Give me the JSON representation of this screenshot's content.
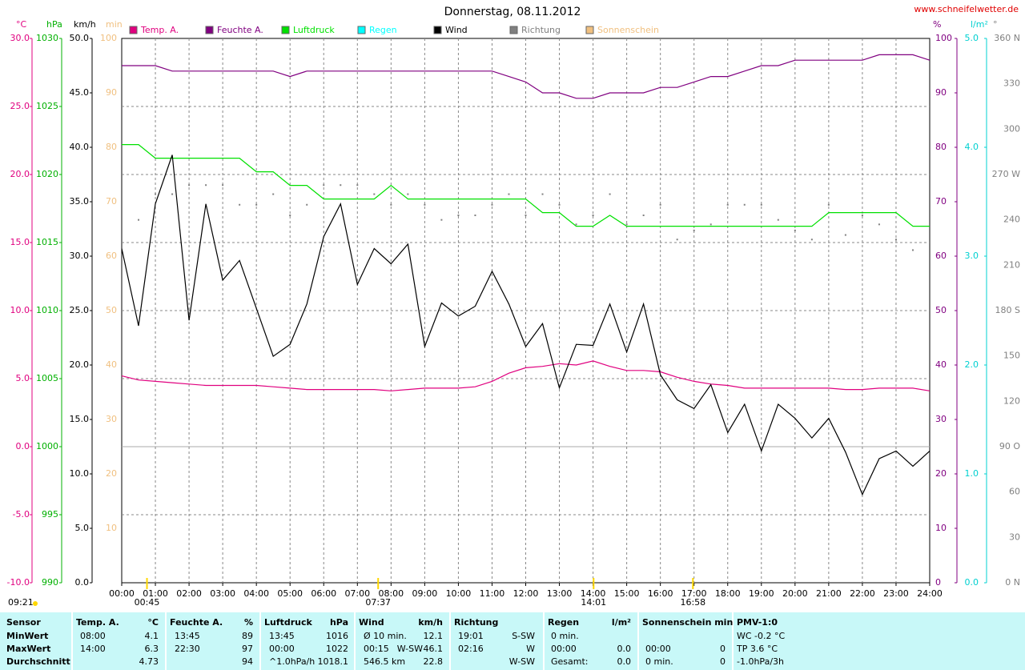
{
  "chart_data": {
    "type": "line",
    "title": "Donnerstag, 08.11.2012",
    "site": "www.schneifelwetter.de",
    "day_length": "09:21",
    "xlim": [
      0,
      24
    ],
    "xticks": [
      {
        "value": 0,
        "label": "00:00"
      },
      {
        "value": 1,
        "label": "01:00"
      },
      {
        "value": 2,
        "label": "02:00"
      },
      {
        "value": 3,
        "label": "03:00"
      },
      {
        "value": 4,
        "label": "04:00"
      },
      {
        "value": 5,
        "label": "05:00"
      },
      {
        "value": 6,
        "label": "06:00"
      },
      {
        "value": 7,
        "label": "07:00"
      },
      {
        "value": 8,
        "label": "08:00"
      },
      {
        "value": 9,
        "label": "09:00"
      },
      {
        "value": 10,
        "label": "10:00"
      },
      {
        "value": 11,
        "label": "11:00"
      },
      {
        "value": 12,
        "label": "12:00"
      },
      {
        "value": 13,
        "label": "13:00"
      },
      {
        "value": 14,
        "label": "14:00"
      },
      {
        "value": 15,
        "label": "15:00"
      },
      {
        "value": 16,
        "label": "16:00"
      },
      {
        "value": 17,
        "label": "17:00"
      },
      {
        "value": 18,
        "label": "18:00"
      },
      {
        "value": 19,
        "label": "19:00"
      },
      {
        "value": 20,
        "label": "20:00"
      },
      {
        "value": 21,
        "label": "21:00"
      },
      {
        "value": 22,
        "label": "22:00"
      },
      {
        "value": 23,
        "label": "23:00"
      },
      {
        "value": 24,
        "label": "24:00"
      }
    ],
    "grid": true,
    "y_axes": [
      {
        "unit": "°C",
        "color": "#e0007f",
        "ylim": [
          -10,
          30
        ],
        "yticks": [
          {
            "value": -10,
            "label": "-10.0"
          },
          {
            "value": -5,
            "label": "-5.0"
          },
          {
            "value": 0,
            "label": "0.0"
          },
          {
            "value": 5,
            "label": "5.0"
          },
          {
            "value": 10,
            "label": "10.0"
          },
          {
            "value": 15,
            "label": "15.0"
          },
          {
            "value": 20,
            "label": "20.0"
          },
          {
            "value": 25,
            "label": "25.0"
          },
          {
            "value": 30,
            "label": "30.0"
          }
        ]
      },
      {
        "unit": "hPa",
        "color": "#00b000",
        "ylim": [
          990,
          1030
        ],
        "yticks": [
          990,
          995,
          1000,
          1005,
          1010,
          1015,
          1020,
          1025,
          1030
        ]
      },
      {
        "unit": "km/h",
        "color": "#000000",
        "ylim": [
          0,
          50
        ],
        "yticks": [
          {
            "value": 0,
            "label": "0.0"
          },
          {
            "value": 5,
            "label": "5.0"
          },
          {
            "value": 10,
            "label": "10.0"
          },
          {
            "value": 15,
            "label": "15.0"
          },
          {
            "value": 20,
            "label": "20.0"
          },
          {
            "value": 25,
            "label": "25.0"
          },
          {
            "value": 30,
            "label": "30.0"
          },
          {
            "value": 35,
            "label": "35.0"
          },
          {
            "value": 40,
            "label": "40.0"
          },
          {
            "value": 45,
            "label": "45.0"
          },
          {
            "value": 50,
            "label": "50.0"
          }
        ]
      },
      {
        "unit": "min",
        "color": "#f0c080",
        "ylim": [
          0,
          100
        ],
        "yticks": [
          10,
          20,
          30,
          40,
          50,
          60,
          70,
          80,
          90,
          100
        ]
      },
      {
        "unit": "%",
        "color": "#800080",
        "ylim": [
          0,
          100
        ],
        "yticks": [
          0,
          10,
          20,
          30,
          40,
          50,
          60,
          70,
          80,
          90,
          100
        ]
      },
      {
        "unit": "l/m²",
        "color": "#00d0d0",
        "ylim": [
          0,
          5
        ],
        "yticks": [
          {
            "value": 0,
            "label": "0.0"
          },
          {
            "value": 1,
            "label": "1.0"
          },
          {
            "value": 2,
            "label": "2.0"
          },
          {
            "value": 3,
            "label": "3.0"
          },
          {
            "value": 4,
            "label": "4.0"
          },
          {
            "value": 5,
            "label": "5.0"
          }
        ]
      },
      {
        "unit": "°",
        "color": "#808080",
        "ylim": [
          0,
          360
        ],
        "yticks": [
          {
            "value": 0,
            "label": "0 N"
          },
          30,
          60,
          {
            "value": 90,
            "label": "90 O"
          },
          120,
          150,
          {
            "value": 180,
            "label": "180 S"
          },
          210,
          240,
          {
            "value": 270,
            "label": "270 W"
          },
          300,
          330,
          {
            "value": 360,
            "label": "360 N"
          }
        ]
      }
    ],
    "x": [
      0,
      0.5,
      1,
      1.5,
      2,
      2.5,
      3,
      3.5,
      4,
      4.5,
      5,
      5.5,
      6,
      6.5,
      7,
      7.5,
      8,
      8.5,
      9,
      9.5,
      10,
      10.5,
      11,
      11.5,
      12,
      12.5,
      13,
      13.5,
      14,
      14.5,
      15,
      15.5,
      16,
      16.5,
      17,
      17.5,
      18,
      18.5,
      19,
      19.5,
      20,
      20.5,
      21,
      21.5,
      22,
      22.5,
      23,
      23.5,
      24
    ],
    "series": [
      {
        "name": "Temp. A.",
        "color": "#e0007f",
        "axis": 0,
        "style": "line",
        "values": [
          5.2,
          4.9,
          4.8,
          4.7,
          4.6,
          4.5,
          4.5,
          4.5,
          4.5,
          4.4,
          4.3,
          4.2,
          4.2,
          4.2,
          4.2,
          4.2,
          4.1,
          4.2,
          4.3,
          4.3,
          4.3,
          4.4,
          4.8,
          5.4,
          5.8,
          5.9,
          6.1,
          6.0,
          6.3,
          5.9,
          5.6,
          5.6,
          5.5,
          5.1,
          4.8,
          4.6,
          4.5,
          4.3,
          4.3,
          4.3,
          4.3,
          4.3,
          4.3,
          4.2,
          4.2,
          4.3,
          4.3,
          4.3,
          4.1
        ]
      },
      {
        "name": "Feuchte A.",
        "color": "#800080",
        "axis": 4,
        "style": "line",
        "values": [
          95,
          95,
          95,
          94,
          94,
          94,
          94,
          94,
          94,
          94,
          93,
          94,
          94,
          94,
          94,
          94,
          94,
          94,
          94,
          94,
          94,
          94,
          94,
          93,
          92,
          90,
          90,
          89,
          89,
          90,
          90,
          90,
          91,
          91,
          92,
          93,
          93,
          94,
          95,
          95,
          96,
          96,
          96,
          96,
          96,
          97,
          97,
          97,
          96
        ]
      },
      {
        "name": "Luftdruck",
        "color": "#00e000",
        "axis": 1,
        "style": "line",
        "values": [
          1022.2,
          1022.2,
          1021.2,
          1021.2,
          1021.2,
          1021.2,
          1021.2,
          1021.2,
          1020.2,
          1020.2,
          1019.2,
          1019.2,
          1018.2,
          1018.2,
          1018.2,
          1018.2,
          1019.2,
          1018.2,
          1018.2,
          1018.2,
          1018.2,
          1018.2,
          1018.2,
          1018.2,
          1018.2,
          1017.2,
          1017.2,
          1016.2,
          1016.2,
          1017.0,
          1016.2,
          1016.2,
          1016.2,
          1016.2,
          1016.2,
          1016.2,
          1016.2,
          1016.2,
          1016.2,
          1016.2,
          1016.2,
          1016.2,
          1017.2,
          1017.2,
          1017.2,
          1017.2,
          1017.2,
          1016.2,
          1016.2
        ]
      },
      {
        "name": "Wind",
        "color": "#000000",
        "axis": 2,
        "style": "line",
        "values": [
          30.7,
          23.6,
          34.8,
          39.3,
          24.1,
          34.8,
          27.8,
          29.6,
          25.2,
          20.8,
          21.9,
          25.6,
          31.8,
          34.8,
          27.4,
          30.7,
          29.3,
          31.1,
          21.7,
          25.7,
          24.5,
          25.4,
          28.6,
          25.6,
          21.7,
          23.8,
          17.9,
          21.9,
          21.8,
          25.6,
          21.2,
          25.6,
          19.1,
          16.8,
          16.0,
          18.2,
          13.8,
          16.4,
          12.1,
          16.4,
          15.1,
          13.3,
          15.1,
          12.0,
          8.1,
          11.4,
          12.1,
          10.7,
          12.1
        ]
      },
      {
        "name": "Richtung",
        "color": "#808080",
        "axis": 6,
        "style": "dots",
        "values": [
          250,
          240,
          257,
          257,
          263,
          263,
          263,
          250,
          250,
          257,
          243,
          250,
          263,
          263,
          263,
          257,
          250,
          257,
          250,
          240,
          243,
          243,
          250,
          257,
          243,
          257,
          250,
          237,
          243,
          257,
          237,
          243,
          250,
          227,
          233,
          237,
          250,
          250,
          250,
          240,
          233,
          227,
          250,
          230,
          243,
          237,
          227,
          220,
          210
        ]
      }
    ],
    "extra_legend": [
      {
        "name": "Regen",
        "color": "#00ffff"
      },
      {
        "name": "Sonnenschein",
        "color": "#f0c080"
      }
    ],
    "sun_events": [
      {
        "value": 0.75,
        "label": "00:45"
      },
      {
        "value": 7.6167,
        "label": "07:37"
      },
      {
        "value": 14.0167,
        "label": "14:01"
      },
      {
        "value": 16.9667,
        "label": "16:58"
      }
    ]
  },
  "table": {
    "header": {
      "label": "Sensor",
      "temp": "Temp. A.",
      "temp_u": "°C",
      "hum": "Feuchte A.",
      "hum_u": "%",
      "press": "Luftdruck",
      "press_u": "hPa",
      "wind": "Wind",
      "wind_u": "km/h",
      "dir": "Richtung",
      "rain": "Regen",
      "rain_u": "l/m²",
      "sun": "Sonnenschein min",
      "pmv": "PMV-1:0"
    },
    "rows": [
      {
        "label": "MinWert",
        "temp": "08:00",
        "temp_u": "4.1",
        "hum": "13:45",
        "hum_u": "89",
        "press": "13:45",
        "press_u": "1016",
        "wind": "Ø 10 min.",
        "wind_u": "12.1",
        "dir": "19:01",
        "dir_v": "S-SW",
        "rain": "0 min.",
        "pmv": "WC -0.2 °C"
      },
      {
        "label": "MaxWert",
        "temp": "14:00",
        "temp_u": "6.3",
        "hum": "22:30",
        "hum_u": "97",
        "press": "00:00",
        "press_u": "1022",
        "wind": "00:15",
        "wind_d": "W-SW",
        "wind_u": "46.1",
        "dir": "02:16",
        "dir_v": "W",
        "rain": "00:00",
        "rain_u": "0.0",
        "sun": "00:00",
        "sun_u": "0",
        "pmv": "TP 3.6 °C"
      },
      {
        "label": "Durchschnitt",
        "temp_u": "4.73",
        "hum_u": "94",
        "press": "^1.0hPa/h",
        "press_u": "1018.1",
        "wind": "546.5 km",
        "wind_u": "22.8",
        "dir_v": "W-SW",
        "rain": "Gesamt:",
        "rain_u": "0.0",
        "sun": "0 min.",
        "sun_u": "0",
        "pmv": "-1.0hPa/3h"
      }
    ]
  }
}
